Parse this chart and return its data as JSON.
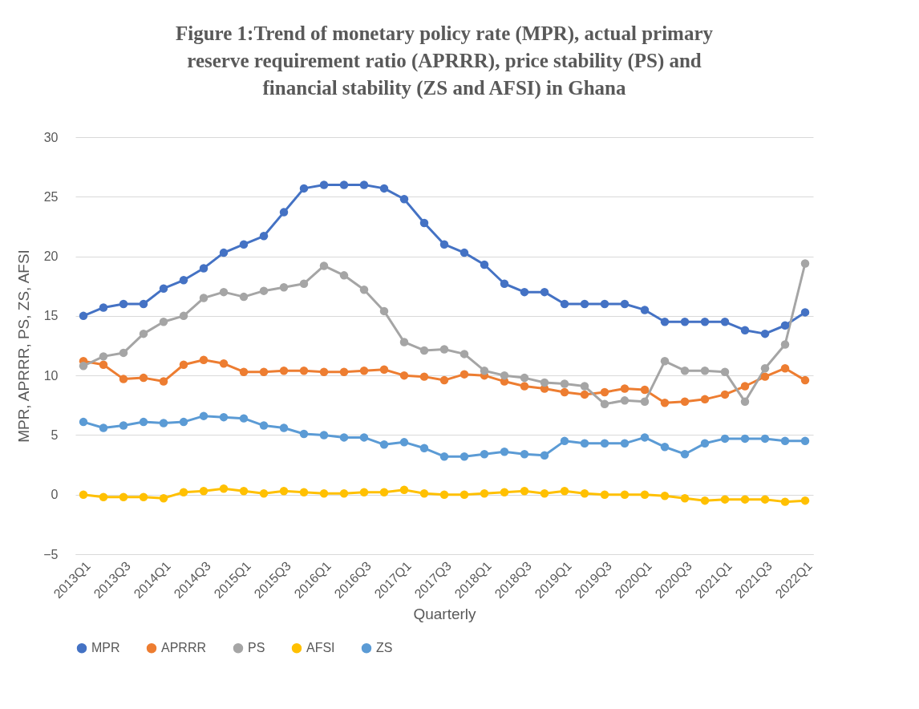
{
  "chart_data": {
    "type": "line",
    "title": "Figure 1:Trend of monetary policy rate (MPR), actual primary reserve requirement ratio (APRRR), price stability (PS) and financial stability (ZS and AFSI) in Ghana",
    "xlabel": "Quarterly",
    "ylabel": "MPR, APRRR, PS, ZS, AFSI",
    "categories": [
      "2013Q1",
      null,
      "2013Q3",
      null,
      "2014Q1",
      null,
      "2014Q3",
      null,
      "2015Q1",
      null,
      "2015Q3",
      null,
      "2016Q1",
      null,
      "2016Q3",
      null,
      "2017Q1",
      null,
      "2017Q3",
      null,
      "2018Q1",
      null,
      "2018Q3",
      null,
      "2019Q1",
      null,
      "2019Q3",
      null,
      "2020Q1",
      null,
      "2020Q3",
      null,
      "2021Q1",
      null,
      "2021Q3",
      null,
      "2022Q1"
    ],
    "series": [
      {
        "name": "MPR",
        "color": "#4472c4",
        "values": [
          15,
          15.7,
          16,
          16,
          17.3,
          18,
          19,
          20.3,
          21,
          21.7,
          23.7,
          25.7,
          26,
          26,
          26,
          25.7,
          24.8,
          22.8,
          21,
          20.3,
          19.3,
          17.7,
          17,
          17,
          16,
          16,
          16,
          16,
          15.5,
          14.5,
          14.5,
          14.5,
          14.5,
          13.8,
          13.5,
          14.2,
          15.3
        ]
      },
      {
        "name": "APRRR",
        "color": "#ed7d31",
        "values": [
          11.2,
          10.9,
          9.7,
          9.8,
          9.5,
          10.9,
          11.3,
          11,
          10.3,
          10.3,
          10.4,
          10.4,
          10.3,
          10.3,
          10.4,
          10.5,
          10,
          9.9,
          9.6,
          10.1,
          10,
          9.5,
          9.1,
          8.9,
          8.6,
          8.4,
          8.6,
          8.9,
          8.8,
          7.7,
          7.8,
          8,
          8.4,
          9.1,
          9.9,
          10.6,
          9.6
        ]
      },
      {
        "name": "PS",
        "color": "#a5a5a5",
        "values": [
          10.8,
          11.6,
          11.9,
          13.5,
          14.5,
          15,
          16.5,
          17,
          16.6,
          17.1,
          17.4,
          17.7,
          19.2,
          18.4,
          17.2,
          15.4,
          12.8,
          12.1,
          12.2,
          11.8,
          10.4,
          10,
          9.8,
          9.4,
          9.3,
          9.1,
          7.6,
          7.9,
          7.8,
          11.2,
          10.4,
          10.4,
          10.3,
          7.8,
          10.6,
          12.6,
          19.4
        ]
      },
      {
        "name": "AFSI",
        "color": "#ffc000",
        "values": [
          0,
          -0.2,
          -0.2,
          -0.2,
          -0.3,
          0.2,
          0.3,
          0.5,
          0.3,
          0.1,
          0.3,
          0.2,
          0.1,
          0.1,
          0.2,
          0.2,
          0.4,
          0.1,
          0,
          0,
          0.1,
          0.2,
          0.3,
          0.1,
          0.3,
          0.1,
          0,
          0,
          0,
          -0.1,
          -0.3,
          -0.5,
          -0.4,
          -0.4,
          -0.4,
          -0.6,
          -0.5
        ]
      },
      {
        "name": "ZS",
        "color": "#5b9bd5",
        "values": [
          6.1,
          5.6,
          5.8,
          6.1,
          6.0,
          6.1,
          6.6,
          6.5,
          6.4,
          5.8,
          5.6,
          5.1,
          5.0,
          4.8,
          4.8,
          4.2,
          4.4,
          3.9,
          3.2,
          3.2,
          3.4,
          3.6,
          3.4,
          3.3,
          4.5,
          4.3,
          4.3,
          4.3,
          4.8,
          4.0,
          3.4,
          4.3,
          4.7,
          4.7,
          4.7,
          4.5,
          4.5
        ]
      }
    ],
    "ylim": [
      -5,
      30
    ],
    "yticks": [
      -5,
      0,
      5,
      10,
      15,
      20,
      25,
      30
    ],
    "grid": "y",
    "legend": "bottom",
    "marker": "circle",
    "line_style": "solid"
  }
}
